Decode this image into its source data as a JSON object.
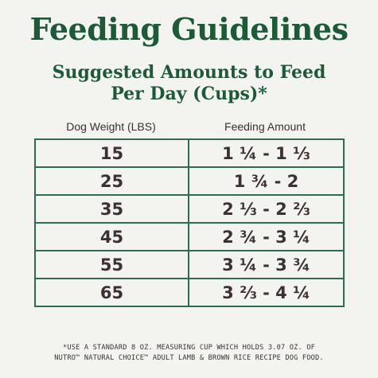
{
  "title": "Feeding Guidelines",
  "subtitle": {
    "line1": "Suggested Amounts to Feed",
    "line2": "Per Day (Cups)*"
  },
  "table": {
    "headers": {
      "weight": "Dog Weight (LBS)",
      "amount": "Feeding Amount"
    },
    "rows": [
      {
        "weight": "15",
        "amount": "1 ¼ - 1 ⅓"
      },
      {
        "weight": "25",
        "amount": "1 ¾ - 2"
      },
      {
        "weight": "35",
        "amount": "2 ⅓ - 2 ⅔"
      },
      {
        "weight": "45",
        "amount": "2 ¾ - 3 ¼"
      },
      {
        "weight": "55",
        "amount": "3 ¼ - 3 ¾"
      },
      {
        "weight": "65",
        "amount": "3 ⅔ - 4 ¼"
      }
    ]
  },
  "footnote": {
    "line1": "*USE A STANDARD 8 OZ. MEASURING CUP WHICH HOLDS 3.07 OZ. OF",
    "line2": "NUTRO™ NATURAL CHOICE™ ADULT LAMB & BROWN RICE RECIPE DOG FOOD."
  },
  "colors": {
    "title_green": "#1f5a38",
    "border_green": "#2f6b4c",
    "text_dark": "#3d2f36",
    "background": "#f3f4ef"
  }
}
